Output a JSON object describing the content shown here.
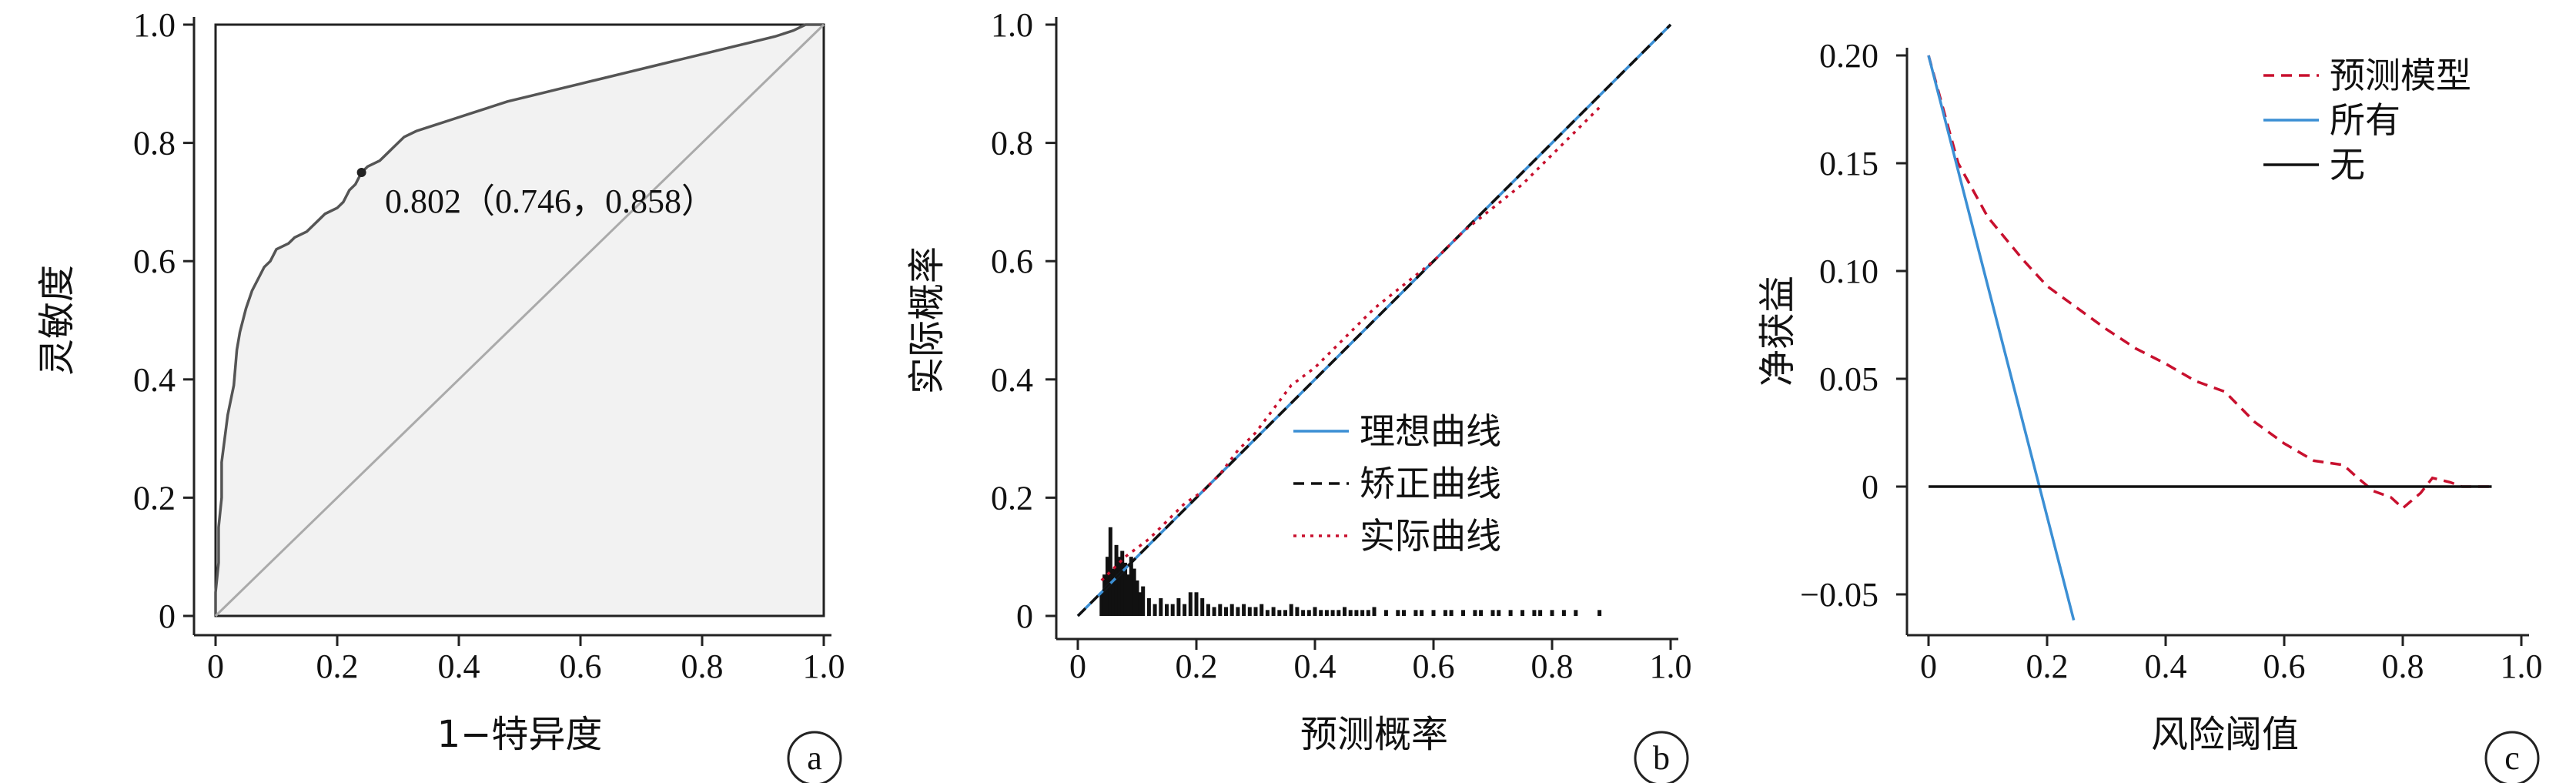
{
  "chart_data": [
    {
      "panel": "a",
      "type": "line",
      "xlabel": "1−特异度",
      "ylabel": "灵敏度",
      "xlim": [
        0,
        1
      ],
      "ylim": [
        0,
        1
      ],
      "x_ticks": [
        "0",
        "0.2",
        "0.4",
        "0.6",
        "0.8",
        "1.0"
      ],
      "y_ticks": [
        "0",
        "0.2",
        "0.4",
        "0.6",
        "0.8",
        "1.0"
      ],
      "annotation": "0.802（0.746，0.858）",
      "cutoff_point": [
        0.24,
        0.75
      ],
      "series": [
        {
          "key": "roc",
          "color": "#555555",
          "x": [
            0,
            0,
            0.005,
            0.005,
            0.01,
            0.01,
            0.015,
            0.02,
            0.03,
            0.035,
            0.04,
            0.05,
            0.06,
            0.07,
            0.08,
            0.09,
            0.1,
            0.12,
            0.13,
            0.15,
            0.16,
            0.17,
            0.18,
            0.2,
            0.21,
            0.22,
            0.23,
            0.24,
            0.25,
            0.27,
            0.29,
            0.31,
            0.33,
            0.36,
            0.39,
            0.42,
            0.45,
            0.48,
            0.52,
            0.56,
            0.6,
            0.64,
            0.68,
            0.72,
            0.76,
            0.8,
            0.84,
            0.88,
            0.92,
            0.95,
            0.97,
            1
          ],
          "y": [
            0,
            0.04,
            0.09,
            0.15,
            0.2,
            0.26,
            0.3,
            0.34,
            0.39,
            0.45,
            0.48,
            0.52,
            0.55,
            0.57,
            0.59,
            0.6,
            0.62,
            0.63,
            0.64,
            0.65,
            0.66,
            0.67,
            0.68,
            0.69,
            0.7,
            0.72,
            0.73,
            0.75,
            0.76,
            0.77,
            0.79,
            0.81,
            0.82,
            0.83,
            0.84,
            0.85,
            0.86,
            0.87,
            0.88,
            0.89,
            0.9,
            0.91,
            0.92,
            0.93,
            0.94,
            0.95,
            0.96,
            0.97,
            0.98,
            0.99,
            1,
            1
          ]
        },
        {
          "key": "diagonal",
          "color": "#aaaaaa",
          "x": [
            0,
            1
          ],
          "y": [
            0,
            1
          ]
        }
      ]
    },
    {
      "panel": "b",
      "type": "line",
      "xlabel": "预测概率",
      "ylabel": "实际概率",
      "xlim": [
        0,
        1
      ],
      "ylim": [
        0,
        1
      ],
      "x_ticks": [
        "0",
        "0.2",
        "0.4",
        "0.6",
        "0.8",
        "1.0"
      ],
      "y_ticks": [
        "0",
        "0.2",
        "0.4",
        "0.6",
        "0.8",
        "1.0"
      ],
      "legend": {
        "position": "center-right",
        "items": [
          "理想曲线",
          "矫正曲线",
          "实际曲线"
        ]
      },
      "series": [
        {
          "name": "理想曲线",
          "color": "#3b8fd4",
          "style": "solid",
          "x": [
            0,
            1
          ],
          "y": [
            0,
            1
          ]
        },
        {
          "name": "矫正曲线",
          "color": "#111111",
          "style": "dashed",
          "x": [
            0,
            1
          ],
          "y": [
            0,
            1
          ]
        },
        {
          "name": "实际曲线",
          "color": "#c8102e",
          "style": "dotted",
          "x": [
            0.04,
            0.06,
            0.08,
            0.1,
            0.12,
            0.15,
            0.18,
            0.21,
            0.24,
            0.27,
            0.3,
            0.33,
            0.36,
            0.4,
            0.45,
            0.5,
            0.55,
            0.6,
            0.65,
            0.7,
            0.75,
            0.8,
            0.85,
            0.88
          ],
          "y": [
            0.06,
            0.08,
            0.1,
            0.115,
            0.13,
            0.16,
            0.19,
            0.21,
            0.24,
            0.28,
            0.31,
            0.35,
            0.39,
            0.42,
            0.47,
            0.52,
            0.56,
            0.6,
            0.65,
            0.69,
            0.73,
            0.78,
            0.83,
            0.86
          ]
        }
      ],
      "histogram": {
        "x": [
          0.04,
          0.045,
          0.05,
          0.055,
          0.06,
          0.065,
          0.07,
          0.075,
          0.08,
          0.085,
          0.09,
          0.095,
          0.1,
          0.105,
          0.11,
          0.12,
          0.13,
          0.14,
          0.15,
          0.16,
          0.17,
          0.18,
          0.19,
          0.2,
          0.21,
          0.22,
          0.23,
          0.24,
          0.25,
          0.26,
          0.27,
          0.28,
          0.29,
          0.3,
          0.31,
          0.32,
          0.33,
          0.34,
          0.35,
          0.36,
          0.37,
          0.38,
          0.39,
          0.4,
          0.41,
          0.42,
          0.43,
          0.44,
          0.45,
          0.46,
          0.47,
          0.48,
          0.49,
          0.5,
          0.52,
          0.54,
          0.55,
          0.57,
          0.58,
          0.6,
          0.62,
          0.63,
          0.65,
          0.67,
          0.68,
          0.7,
          0.71,
          0.73,
          0.75,
          0.77,
          0.78,
          0.8,
          0.82,
          0.84,
          0.88
        ],
        "y": [
          0.04,
          0.07,
          0.1,
          0.15,
          0.08,
          0.12,
          0.1,
          0.11,
          0.09,
          0.07,
          0.1,
          0.08,
          0.06,
          0.04,
          0.05,
          0.03,
          0.02,
          0.03,
          0.02,
          0.02,
          0.03,
          0.02,
          0.04,
          0.04,
          0.03,
          0.02,
          0.015,
          0.02,
          0.015,
          0.02,
          0.015,
          0.02,
          0.015,
          0.015,
          0.02,
          0.01,
          0.015,
          0.01,
          0.01,
          0.02,
          0.015,
          0.01,
          0.01,
          0.015,
          0.01,
          0.01,
          0.01,
          0.01,
          0.015,
          0.01,
          0.01,
          0.01,
          0.01,
          0.015,
          0.01,
          0.01,
          0.01,
          0.01,
          0.01,
          0.01,
          0.01,
          0.01,
          0.01,
          0.01,
          0.01,
          0.01,
          0.01,
          0.01,
          0.01,
          0.01,
          0.01,
          0.01,
          0.01,
          0.01,
          0.01
        ]
      }
    },
    {
      "panel": "c",
      "type": "line",
      "xlabel": "风险阈值",
      "ylabel": "净获益",
      "xlim": [
        0,
        1
      ],
      "ylim": [
        -0.06,
        0.2
      ],
      "x_ticks": [
        "0",
        "0.2",
        "0.4",
        "0.6",
        "0.8",
        "1.0"
      ],
      "y_ticks": [
        "−0.05",
        "0",
        "0.05",
        "0.10",
        "0.15",
        "0.20"
      ],
      "legend": {
        "position": "top-right",
        "items": [
          "预测模型",
          "所有",
          "无"
        ]
      },
      "series": [
        {
          "name": "预测模型",
          "color": "#c8102e",
          "style": "dashed",
          "x": [
            0,
            0.02,
            0.05,
            0.08,
            0.1,
            0.13,
            0.16,
            0.2,
            0.25,
            0.3,
            0.35,
            0.4,
            0.45,
            0.5,
            0.55,
            0.6,
            0.65,
            0.7,
            0.72,
            0.75,
            0.78,
            0.8,
            0.83,
            0.85,
            0.88,
            0.9,
            0.95
          ],
          "y": [
            0.2,
            0.18,
            0.15,
            0.135,
            0.125,
            0.115,
            0.105,
            0.093,
            0.083,
            0.073,
            0.064,
            0.057,
            0.049,
            0.044,
            0.03,
            0.02,
            0.012,
            0.01,
            0.005,
            -0.002,
            -0.005,
            -0.01,
            -0.003,
            0.004,
            0.002,
            0,
            0
          ]
        },
        {
          "name": "所有",
          "color": "#3b8fd4",
          "style": "solid",
          "x": [
            0,
            0.245
          ],
          "y": [
            0.2,
            -0.062
          ]
        },
        {
          "name": "无",
          "color": "#111111",
          "style": "solid",
          "x": [
            0,
            0.95
          ],
          "y": [
            0,
            0
          ]
        }
      ]
    }
  ],
  "panel_labels": [
    "a",
    "b",
    "c"
  ]
}
